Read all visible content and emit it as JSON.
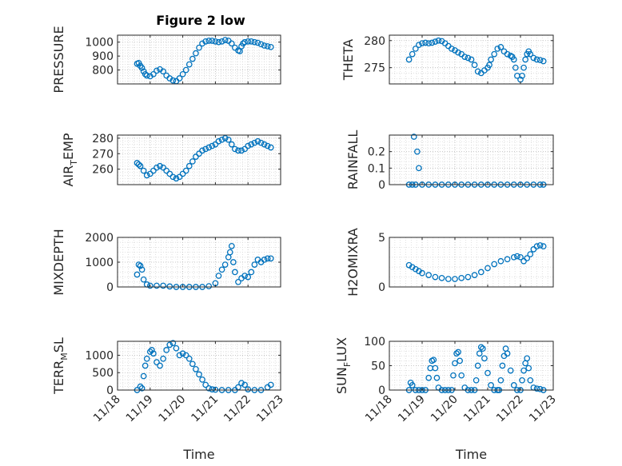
{
  "figure": {
    "title": "Figure 2 low",
    "marker_color": "#0072BD"
  },
  "chart_data": [
    {
      "type": "scatter",
      "ylabel": "PRESSURE",
      "xlabel": "",
      "title": "Figure 2 low",
      "xlim": [
        18,
        23
      ],
      "ylim": [
        700,
        1050
      ],
      "yticks": [
        800,
        900,
        1000
      ],
      "yticklabels": [
        "800",
        "900",
        "1000"
      ],
      "show_xticklabels": false,
      "x": [
        18.6,
        18.65,
        18.7,
        18.75,
        18.8,
        18.85,
        18.9,
        19.0,
        19.1,
        19.2,
        19.3,
        19.4,
        19.5,
        19.6,
        19.7,
        19.8,
        19.9,
        20.0,
        20.1,
        20.2,
        20.3,
        20.4,
        20.5,
        20.6,
        20.7,
        20.8,
        20.9,
        21.0,
        21.1,
        21.2,
        21.3,
        21.4,
        21.5,
        21.6,
        21.7,
        21.75,
        21.8,
        21.85,
        21.9,
        22.0,
        22.1,
        22.2,
        22.3,
        22.4,
        22.5,
        22.6,
        22.7
      ],
      "y": [
        845,
        850,
        830,
        815,
        790,
        770,
        760,
        755,
        770,
        795,
        805,
        790,
        760,
        740,
        725,
        720,
        740,
        770,
        800,
        840,
        880,
        920,
        960,
        990,
        1005,
        1010,
        1010,
        1005,
        1000,
        1005,
        1015,
        1010,
        990,
        960,
        940,
        935,
        970,
        990,
        1000,
        1005,
        1005,
        1000,
        995,
        985,
        975,
        970,
        965
      ]
    },
    {
      "type": "scatter",
      "ylabel": "THETA",
      "xlabel": "",
      "xlim": [
        18,
        23
      ],
      "ylim": [
        272,
        281
      ],
      "yticks": [
        275,
        280
      ],
      "yticklabels": [
        "275",
        "280"
      ],
      "show_xticklabels": false,
      "x": [
        18.6,
        18.7,
        18.8,
        18.9,
        19.0,
        19.1,
        19.2,
        19.3,
        19.4,
        19.5,
        19.6,
        19.7,
        19.8,
        19.9,
        20.0,
        20.1,
        20.2,
        20.3,
        20.4,
        20.5,
        20.6,
        20.7,
        20.8,
        20.9,
        21.0,
        21.05,
        21.1,
        21.2,
        21.3,
        21.4,
        21.5,
        21.6,
        21.7,
        21.75,
        21.8,
        21.85,
        21.9,
        22.0,
        22.05,
        22.1,
        22.15,
        22.2,
        22.25,
        22.3,
        22.4,
        22.5,
        22.6,
        22.7
      ],
      "y": [
        276.5,
        277.5,
        278.5,
        279.2,
        279.5,
        279.6,
        279.5,
        279.6,
        279.8,
        280.0,
        279.9,
        279.5,
        279.0,
        278.5,
        278.2,
        277.8,
        277.5,
        277.0,
        276.8,
        276.5,
        275.5,
        274.3,
        274.0,
        274.5,
        275.0,
        275.5,
        276.5,
        277.5,
        278.5,
        278.8,
        278.0,
        277.5,
        277.2,
        277.0,
        276.5,
        275.0,
        273.5,
        272.8,
        273.5,
        275.0,
        276.5,
        277.5,
        278.0,
        277.5,
        276.8,
        276.5,
        276.4,
        276.2
      ]
    },
    {
      "type": "scatter",
      "ylabel": "AIR_TEMP",
      "xlabel": "",
      "xlim": [
        18,
        23
      ],
      "ylim": [
        250,
        282
      ],
      "yticks": [
        260,
        270,
        280
      ],
      "yticklabels": [
        "260",
        "270",
        "280"
      ],
      "show_xticklabels": false,
      "x": [
        18.6,
        18.65,
        18.7,
        18.8,
        18.9,
        19.0,
        19.1,
        19.2,
        19.3,
        19.4,
        19.5,
        19.6,
        19.7,
        19.8,
        19.9,
        20.0,
        20.1,
        20.2,
        20.3,
        20.4,
        20.5,
        20.6,
        20.7,
        20.8,
        20.9,
        21.0,
        21.1,
        21.2,
        21.3,
        21.4,
        21.5,
        21.6,
        21.7,
        21.8,
        21.9,
        22.0,
        22.1,
        22.2,
        22.3,
        22.4,
        22.5,
        22.6,
        22.7
      ],
      "y": [
        264,
        263,
        262,
        259,
        256,
        257,
        259,
        261,
        262,
        261,
        259,
        257,
        255,
        254,
        255,
        257,
        259,
        262,
        265,
        268,
        270,
        272,
        273,
        274,
        275,
        276,
        278,
        279,
        280,
        279,
        276,
        273,
        272,
        272,
        273,
        275,
        276,
        277,
        278,
        277,
        276,
        275,
        274
      ]
    },
    {
      "type": "scatter",
      "ylabel": "RAINFALL",
      "xlabel": "",
      "xlim": [
        18,
        23
      ],
      "ylim": [
        0,
        0.3
      ],
      "yticks": [
        0,
        0.1,
        0.2
      ],
      "yticklabels": [
        "0",
        "0.1",
        "0.2"
      ],
      "show_xticklabels": false,
      "x": [
        18.6,
        18.7,
        18.75,
        18.8,
        18.85,
        18.9,
        19.0,
        19.2,
        19.4,
        19.6,
        19.8,
        20.0,
        20.2,
        20.4,
        20.6,
        20.8,
        21.0,
        21.2,
        21.4,
        21.6,
        21.8,
        22.0,
        22.2,
        22.4,
        22.6,
        22.7
      ],
      "y": [
        0,
        0,
        0.29,
        0,
        0.2,
        0.1,
        0,
        0,
        0,
        0,
        0,
        0,
        0,
        0,
        0,
        0,
        0,
        0,
        0,
        0,
        0,
        0,
        0,
        0,
        0,
        0
      ]
    },
    {
      "type": "scatter",
      "ylabel": "MIXDEPTH",
      "xlabel": "",
      "xlim": [
        18,
        23
      ],
      "ylim": [
        0,
        2000
      ],
      "yticks": [
        0,
        1000,
        2000
      ],
      "yticklabels": [
        "0",
        "1000",
        "2000"
      ],
      "show_xticklabels": false,
      "x": [
        18.6,
        18.65,
        18.7,
        18.75,
        18.8,
        18.9,
        19.0,
        19.2,
        19.4,
        19.6,
        19.8,
        20.0,
        20.2,
        20.4,
        20.6,
        20.8,
        21.0,
        21.1,
        21.2,
        21.3,
        21.4,
        21.45,
        21.5,
        21.55,
        21.6,
        21.7,
        21.8,
        21.9,
        22.0,
        22.1,
        22.2,
        22.3,
        22.4,
        22.5,
        22.6,
        22.7
      ],
      "y": [
        500,
        900,
        850,
        700,
        300,
        100,
        50,
        50,
        50,
        20,
        0,
        0,
        0,
        0,
        0,
        30,
        150,
        450,
        700,
        900,
        1200,
        1400,
        1650,
        1000,
        600,
        200,
        350,
        450,
        400,
        600,
        900,
        1100,
        1000,
        1100,
        1150,
        1150
      ]
    },
    {
      "type": "scatter",
      "ylabel": "H2OMIXRA",
      "xlabel": "",
      "xlim": [
        18,
        23
      ],
      "ylim": [
        0,
        5
      ],
      "yticks": [
        0,
        5
      ],
      "yticklabels": [
        "0",
        "5"
      ],
      "show_xticklabels": false,
      "x": [
        18.6,
        18.7,
        18.8,
        18.9,
        19.0,
        19.2,
        19.4,
        19.6,
        19.8,
        20.0,
        20.2,
        20.4,
        20.6,
        20.8,
        21.0,
        21.2,
        21.4,
        21.6,
        21.8,
        21.9,
        22.0,
        22.1,
        22.2,
        22.3,
        22.4,
        22.5,
        22.6,
        22.7
      ],
      "y": [
        2.2,
        2.0,
        1.8,
        1.6,
        1.4,
        1.2,
        1.0,
        0.9,
        0.8,
        0.8,
        0.9,
        1.0,
        1.2,
        1.5,
        1.9,
        2.3,
        2.6,
        2.8,
        3.0,
        3.1,
        3.0,
        2.6,
        2.9,
        3.3,
        3.8,
        4.1,
        4.2,
        4.1
      ]
    },
    {
      "type": "scatter",
      "ylabel": "TERR_MSL",
      "xlabel": "Time",
      "xlim": [
        18,
        23
      ],
      "ylim": [
        0,
        1400
      ],
      "yticks": [
        0,
        500,
        1000
      ],
      "yticklabels": [
        "0",
        "500",
        "1000"
      ],
      "show_xticklabels": true,
      "xticks": [
        18,
        19,
        20,
        21,
        22,
        23
      ],
      "xticklabels": [
        "11/18",
        "11/19",
        "11/20",
        "11/21",
        "11/22",
        "11/23"
      ],
      "x": [
        18.6,
        18.7,
        18.75,
        18.8,
        18.85,
        18.9,
        19.0,
        19.05,
        19.1,
        19.2,
        19.3,
        19.4,
        19.5,
        19.6,
        19.7,
        19.8,
        19.9,
        20.0,
        20.1,
        20.2,
        20.3,
        20.4,
        20.5,
        20.6,
        20.7,
        20.8,
        20.9,
        21.0,
        21.2,
        21.4,
        21.6,
        21.7,
        21.8,
        21.9,
        22.0,
        22.2,
        22.4,
        22.6,
        22.7
      ],
      "y": [
        0,
        100,
        50,
        400,
        700,
        900,
        1100,
        1150,
        1050,
        800,
        700,
        900,
        1150,
        1300,
        1350,
        1200,
        1000,
        1050,
        1000,
        900,
        750,
        600,
        450,
        300,
        150,
        50,
        20,
        10,
        0,
        0,
        0,
        80,
        200,
        150,
        20,
        0,
        0,
        80,
        150
      ]
    },
    {
      "type": "scatter",
      "ylabel": "SUN_FLUX",
      "xlabel": "Time",
      "xlim": [
        18,
        23
      ],
      "ylim": [
        0,
        100
      ],
      "yticks": [
        0,
        50,
        100
      ],
      "yticklabels": [
        "0",
        "50",
        "100"
      ],
      "show_xticklabels": true,
      "xticks": [
        18,
        19,
        20,
        21,
        22,
        23
      ],
      "xticklabels": [
        "11/18",
        "11/19",
        "11/20",
        "11/21",
        "11/22",
        "11/23"
      ],
      "x": [
        18.6,
        18.65,
        18.7,
        18.8,
        18.9,
        19.0,
        19.1,
        19.2,
        19.25,
        19.3,
        19.35,
        19.4,
        19.45,
        19.5,
        19.6,
        19.7,
        19.8,
        19.9,
        19.95,
        20.0,
        20.05,
        20.1,
        20.15,
        20.2,
        20.3,
        20.4,
        20.5,
        20.6,
        20.65,
        20.7,
        20.75,
        20.8,
        20.85,
        20.9,
        21.0,
        21.1,
        21.2,
        21.3,
        21.35,
        21.4,
        21.45,
        21.5,
        21.55,
        21.6,
        21.7,
        21.8,
        21.9,
        22.0,
        22.05,
        22.1,
        22.15,
        22.2,
        22.25,
        22.3,
        22.4,
        22.5,
        22.6,
        22.7
      ],
      "y": [
        0,
        15,
        10,
        0,
        0,
        0,
        0,
        25,
        45,
        60,
        62,
        45,
        25,
        5,
        0,
        0,
        0,
        0,
        30,
        55,
        75,
        78,
        60,
        30,
        5,
        0,
        0,
        0,
        20,
        50,
        75,
        88,
        85,
        65,
        35,
        10,
        0,
        0,
        0,
        20,
        50,
        70,
        85,
        75,
        40,
        10,
        0,
        0,
        20,
        40,
        55,
        65,
        45,
        20,
        5,
        3,
        2,
        0
      ]
    }
  ]
}
